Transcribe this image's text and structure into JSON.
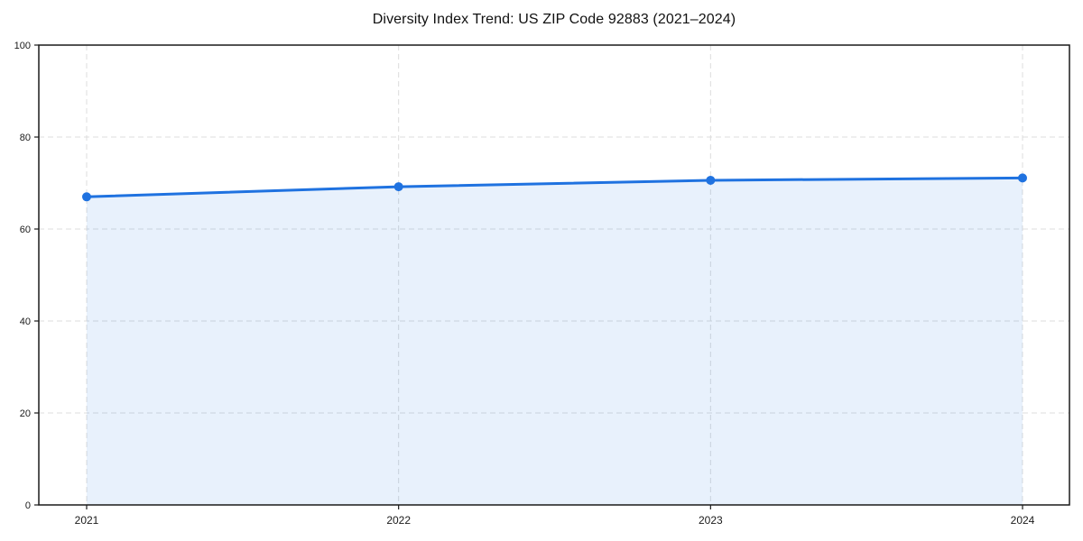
{
  "chart_data": {
    "type": "area",
    "title": "Diversity Index Trend: US ZIP Code 92883 (2021–2024)",
    "x": [
      "2021",
      "2022",
      "2023",
      "2024"
    ],
    "series": [
      {
        "name": "Diversity Index",
        "values": [
          67.0,
          69.2,
          70.6,
          71.1
        ]
      }
    ],
    "xlabel": "",
    "ylabel": "",
    "ylim": [
      0,
      100
    ],
    "yticks": [
      0,
      20,
      40,
      60,
      80,
      100
    ],
    "grid": {
      "visible": true,
      "style": "dashed",
      "axes": "both",
      "color": "#dcdcdc"
    },
    "legend": "none",
    "marker": "circle",
    "colors": {
      "line": "#1f72e0",
      "fill": "rgba(31,114,224,0.10)",
      "axis": "#1a1a1a",
      "title_text": "#111111",
      "tick_text": "#1a1a1a",
      "background": "#ffffff"
    }
  }
}
